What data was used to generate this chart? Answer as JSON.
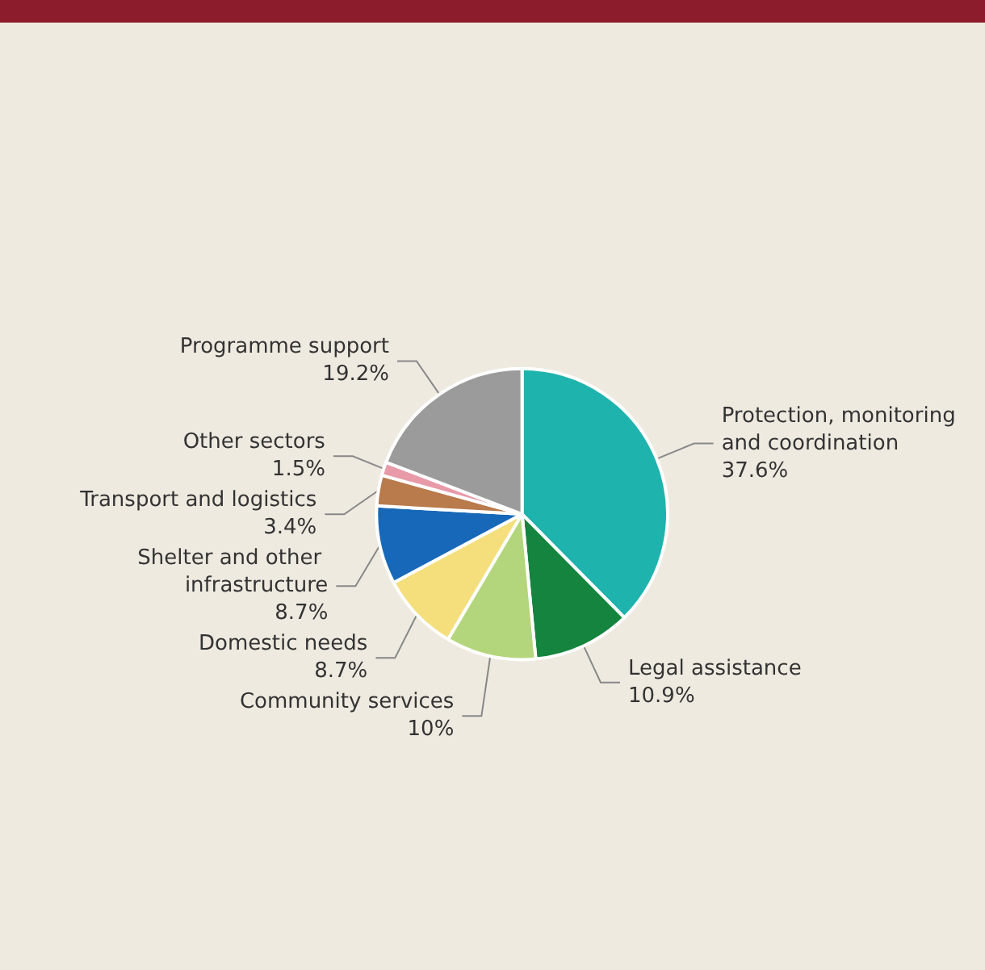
{
  "chart_data": {
    "type": "pie",
    "categories": [
      "Protection, monitoring and coordination",
      "Legal assistance",
      "Community services",
      "Domestic needs",
      "Shelter and other infrastructure",
      "Transport and logistics",
      "Other sectors",
      "Programme support"
    ],
    "values": [
      37.6,
      10.9,
      10,
      8.7,
      8.7,
      3.4,
      1.5,
      19.2
    ],
    "value_labels": [
      "37.6%",
      "10.9%",
      "10%",
      "8.7%",
      "8.7%",
      "3.4%",
      "1.5%",
      "19.2%"
    ],
    "colors": [
      "#1fb3ad",
      "#14843e",
      "#b3d67c",
      "#f4df7c",
      "#1768b8",
      "#b97a4c",
      "#e89aa8",
      "#9b9b9b"
    ],
    "legend": false
  }
}
